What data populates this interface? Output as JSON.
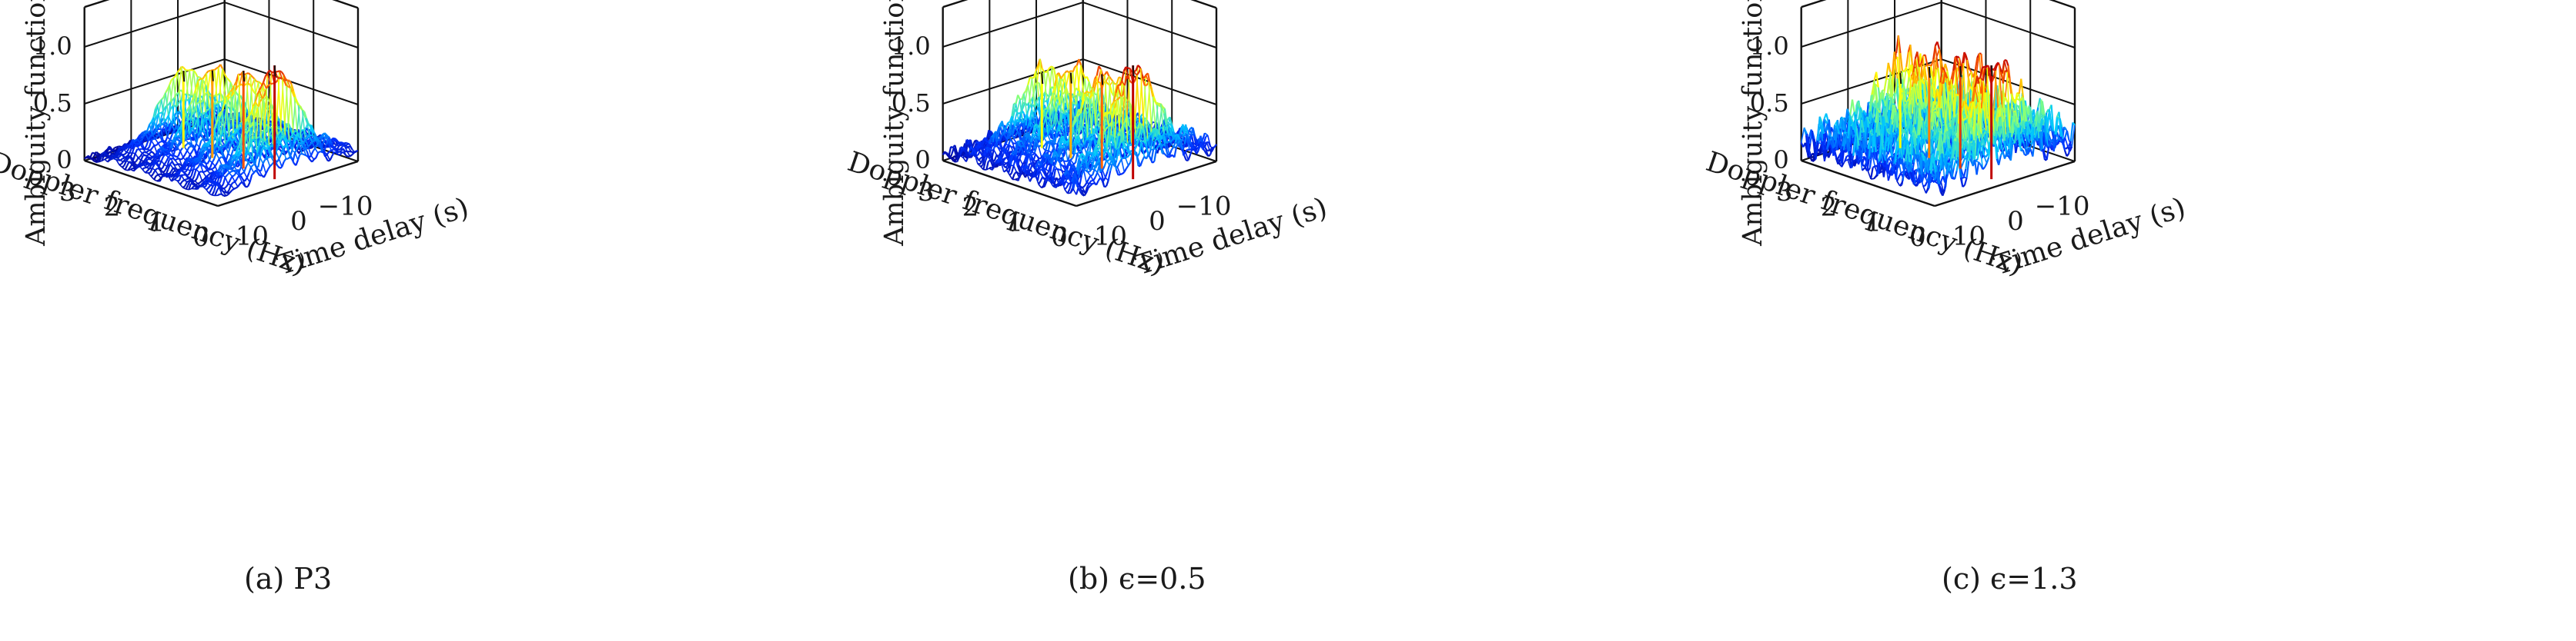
{
  "chart_data": [
    {
      "type": "surface",
      "id": "a",
      "caption": "(a) P3",
      "zlabel": "Ambiguity function",
      "xlabel": "Time delay (s)",
      "ylabel": "Doppler frequency (Hz)",
      "z_ticks": [
        "0",
        "0.5",
        "1.0"
      ],
      "z_tick_values": [
        0,
        0.5,
        1.0
      ],
      "y_ticks": [
        "0",
        "1",
        "2",
        "3"
      ],
      "x_ticks": [
        "10",
        "0",
        "−10"
      ],
      "zlim": [
        0,
        1.0
      ],
      "ylim": [
        0,
        3
      ],
      "xlim": [
        -15,
        15
      ],
      "peaks": [
        {
          "doppler": 2.35,
          "delay": 0,
          "height": 0.68
        },
        {
          "doppler": 1.7,
          "delay": 0,
          "height": 0.77
        },
        {
          "doppler": 1.0,
          "delay": 0,
          "height": 0.86
        },
        {
          "doppler": 0.3,
          "delay": 0,
          "height": 1.0
        }
      ],
      "background_noise": 0.05
    },
    {
      "type": "surface",
      "id": "b",
      "caption": "(b) ϵ=0.5",
      "zlabel": "Ambiguity function",
      "xlabel": "Time delay (s)",
      "ylabel": "Doppler frequency (Hz)",
      "z_ticks": [
        "0",
        "0.5",
        "1.0"
      ],
      "z_tick_values": [
        0,
        0.5,
        1.0
      ],
      "y_ticks": [
        "0",
        "1",
        "2",
        "3"
      ],
      "x_ticks": [
        "10",
        "0",
        "−10"
      ],
      "zlim": [
        0,
        1.0
      ],
      "ylim": [
        0,
        3
      ],
      "xlim": [
        -15,
        15
      ],
      "peaks": [
        {
          "doppler": 2.35,
          "delay": 0,
          "height": 0.66
        },
        {
          "doppler": 1.7,
          "delay": 0,
          "height": 0.75
        },
        {
          "doppler": 1.0,
          "delay": 0,
          "height": 0.83
        },
        {
          "doppler": 0.3,
          "delay": 0,
          "height": 1.0
        }
      ],
      "background_noise": 0.12
    },
    {
      "type": "surface",
      "id": "c",
      "caption": "(c) ϵ=1.3",
      "zlabel": "Ambiguity function",
      "xlabel": "Time delay (s)",
      "ylabel": "Doppler frequency (Hz)",
      "z_ticks": [
        "0",
        "0.5",
        "1.0"
      ],
      "z_tick_values": [
        0,
        0.5,
        1.0
      ],
      "y_ticks": [
        "0",
        "1",
        "2",
        "3"
      ],
      "x_ticks": [
        "10",
        "0",
        "−10"
      ],
      "zlim": [
        0,
        1.0
      ],
      "ylim": [
        0,
        3
      ],
      "xlim": [
        -15,
        15
      ],
      "peaks": [
        {
          "doppler": 2.35,
          "delay": 0,
          "height": 0.66
        },
        {
          "doppler": 1.7,
          "delay": 0,
          "height": 0.8
        },
        {
          "doppler": 1.0,
          "delay": 0,
          "height": 0.9
        },
        {
          "doppler": 0.3,
          "delay": 0,
          "height": 1.0
        }
      ],
      "background_noise": 0.3
    }
  ],
  "colormap": [
    "#00008f",
    "#0030ff",
    "#00c8ff",
    "#80ff80",
    "#ffff00",
    "#ff6000",
    "#c00000"
  ]
}
